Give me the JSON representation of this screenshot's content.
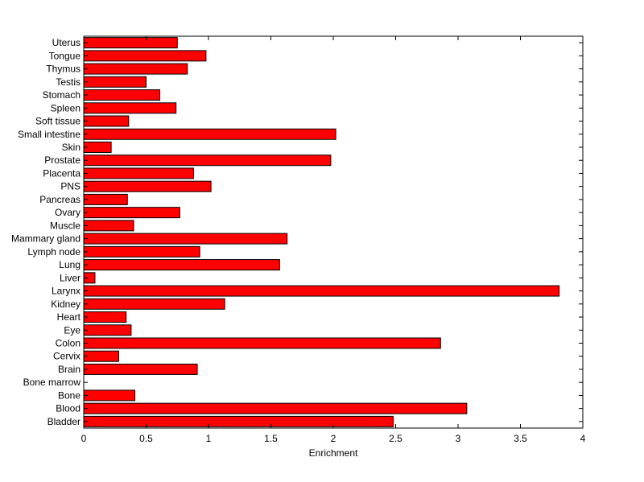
{
  "chart_data": {
    "type": "bar",
    "orientation": "horizontal",
    "xlabel": "Enrichment",
    "ylabel": "",
    "title": "",
    "xlim": [
      0,
      4
    ],
    "xticks": [
      "0",
      "0.5",
      "1",
      "1.5",
      "2",
      "2.5",
      "3",
      "3.5",
      "4"
    ],
    "grid": false,
    "bar_color": "#ff0000",
    "categories": [
      "Uterus",
      "Tongue",
      "Thymus",
      "Testis",
      "Stomach",
      "Spleen",
      "Soft tissue",
      "Small intestine",
      "Skin",
      "Prostate",
      "Placenta",
      "PNS",
      "Pancreas",
      "Ovary",
      "Muscle",
      "Mammary gland",
      "Lymph node",
      "Lung",
      "Liver",
      "Larynx",
      "Kidney",
      "Heart",
      "Eye",
      "Colon",
      "Cervix",
      "Brain",
      "Bone marrow",
      "Bone",
      "Blood",
      "Bladder"
    ],
    "values": [
      0.75,
      0.98,
      0.83,
      0.5,
      0.61,
      0.74,
      0.36,
      2.02,
      0.22,
      1.98,
      0.88,
      1.02,
      0.35,
      0.77,
      0.4,
      1.63,
      0.93,
      1.57,
      0.09,
      3.81,
      1.13,
      0.34,
      0.38,
      2.86,
      0.28,
      0.91,
      0.0,
      0.41,
      3.07,
      2.48
    ]
  }
}
